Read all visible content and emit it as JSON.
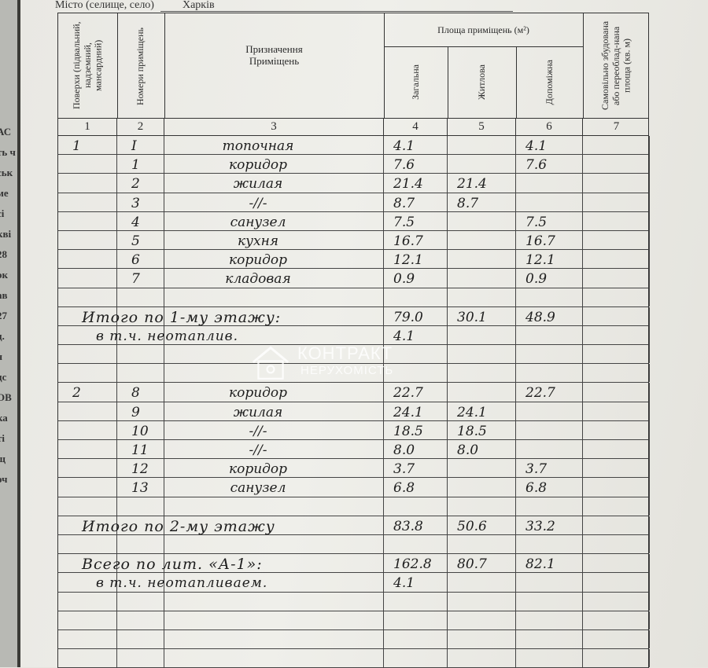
{
  "side_fragments": [
    "АС",
    "ть ч",
    "ськ",
    "ме",
    "сі",
    "кві",
    "28",
    "ок",
    "ав",
    "27",
    "д.",
    "я",
    "дс",
    "ОВ",
    "ка",
    "ті",
    "щ",
    "оч"
  ],
  "header": {
    "city_label": "Місто (селище, село)",
    "city_value": "Харків",
    "col_floors": "Поверхи (підвальний, надземний, мансардний)",
    "col_room_numbers": "Номери приміщень",
    "col_purpose": "Призначення Приміщень",
    "area_group": "Площа приміщень (м²)",
    "col_total": "Загальна",
    "col_living": "Житлова",
    "col_aux": "Допоміжна",
    "col_unauthorized": "Самовільно збудована або переоблад-нана площа (кв. м)",
    "col_numbers": [
      "1",
      "2",
      "3",
      "4",
      "5",
      "6",
      "7"
    ]
  },
  "rows": [
    {
      "floor": "1",
      "num": "І",
      "name": "топочная",
      "total": "4.1",
      "living": "",
      "aux": "4.1"
    },
    {
      "floor": "",
      "num": "1",
      "name": "коридор",
      "total": "7.6",
      "living": "",
      "aux": "7.6"
    },
    {
      "floor": "",
      "num": "2",
      "name": "жилая",
      "total": "21.4",
      "living": "21.4",
      "aux": ""
    },
    {
      "floor": "",
      "num": "3",
      "name": "-//-",
      "total": "8.7",
      "living": "8.7",
      "aux": ""
    },
    {
      "floor": "",
      "num": "4",
      "name": "санузел",
      "total": "7.5",
      "living": "",
      "aux": "7.5"
    },
    {
      "floor": "",
      "num": "5",
      "name": "кухня",
      "total": "16.7",
      "living": "",
      "aux": "16.7"
    },
    {
      "floor": "",
      "num": "6",
      "name": "коридор",
      "total": "12.1",
      "living": "",
      "aux": "12.1"
    },
    {
      "floor": "",
      "num": "7",
      "name": "кладовая",
      "total": "0.9",
      "living": "",
      "aux": "0.9"
    },
    {},
    {
      "label": "Итого по 1-му этажу:",
      "total": "79.0",
      "living": "30.1",
      "aux": "48.9"
    },
    {
      "label": "в т.ч. неотаплив.",
      "sub": true,
      "total": "4.1",
      "living": "",
      "aux": ""
    },
    {},
    {},
    {
      "floor": "2",
      "num": "8",
      "name": "коридор",
      "total": "22.7",
      "living": "",
      "aux": "22.7"
    },
    {
      "floor": "",
      "num": "9",
      "name": "жилая",
      "total": "24.1",
      "living": "24.1",
      "aux": ""
    },
    {
      "floor": "",
      "num": "10",
      "name": "-//-",
      "total": "18.5",
      "living": "18.5",
      "aux": ""
    },
    {
      "floor": "",
      "num": "11",
      "name": "-//-",
      "total": "8.0",
      "living": "8.0",
      "aux": ""
    },
    {
      "floor": "",
      "num": "12",
      "name": "коридор",
      "total": "3.7",
      "living": "",
      "aux": "3.7"
    },
    {
      "floor": "",
      "num": "13",
      "name": "санузел",
      "total": "6.8",
      "living": "",
      "aux": "6.8"
    },
    {},
    {
      "label": "Итого по 2-му этажу",
      "total": "83.8",
      "living": "50.6",
      "aux": "33.2"
    },
    {},
    {
      "label": "Всего по лит. «А-1»:",
      "total": "162.8",
      "living": "80.7",
      "aux": "82.1"
    },
    {
      "label": "в т.ч. неотапливаем.",
      "sub": true,
      "total": "4.1",
      "living": "",
      "aux": ""
    },
    {},
    {},
    {},
    {}
  ],
  "watermark": {
    "line1": "КОНТРАКТ",
    "line2": "НЕРУХОМІСТЬ"
  }
}
